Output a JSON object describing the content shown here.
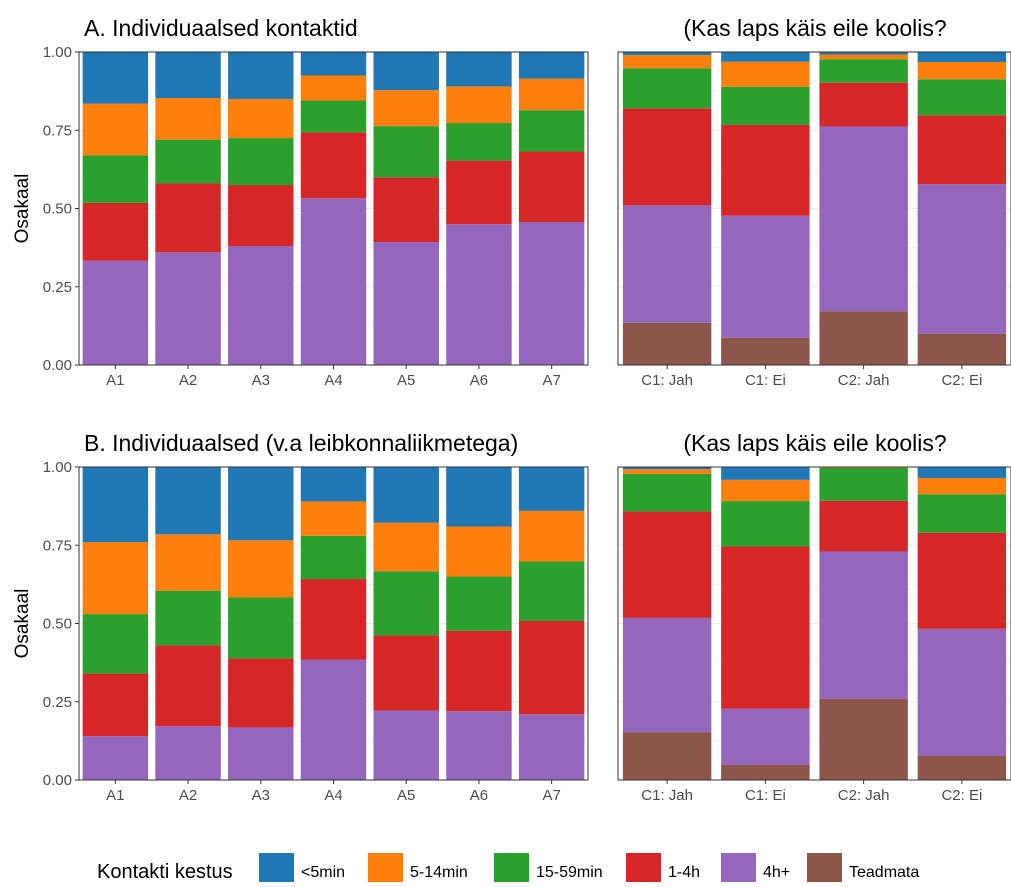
{
  "colors": {
    "<5min": "#1f77b4",
    "5-14min": "#ff7f0e",
    "15-59min": "#2ca02c",
    "1-4h": "#d62728",
    "4h+": "#9467bd",
    "Teadmata": "#8c564b"
  },
  "legend": {
    "title": "Kontakti kestus",
    "items": [
      "<5min",
      "5-14min",
      "15-59min",
      "1-4h",
      "4h+",
      "Teadmata"
    ],
    "placement": "bottom"
  },
  "chart_data": [
    {
      "type": "bar",
      "stacked": true,
      "title": "A. Individuaalsed kontaktid",
      "ylabel": "Osakaal",
      "ylim": [
        0,
        1
      ],
      "yticks": [
        "0.00",
        "0.25",
        "0.50",
        "0.75",
        "1.00"
      ],
      "grid": true,
      "categories": [
        "A1",
        "A2",
        "A3",
        "A4",
        "A5",
        "A6",
        "A7"
      ],
      "series": [
        {
          "name": "4h+",
          "values": [
            0.333,
            0.36,
            0.38,
            0.533,
            0.393,
            0.45,
            0.457
          ]
        },
        {
          "name": "1-4h",
          "values": [
            0.185,
            0.22,
            0.195,
            0.21,
            0.207,
            0.203,
            0.225
          ]
        },
        {
          "name": "15-59min",
          "values": [
            0.152,
            0.14,
            0.15,
            0.102,
            0.163,
            0.12,
            0.132
          ]
        },
        {
          "name": "5-14min",
          "values": [
            0.165,
            0.133,
            0.125,
            0.08,
            0.115,
            0.117,
            0.101
          ]
        },
        {
          "name": "<5min",
          "values": [
            0.165,
            0.147,
            0.15,
            0.075,
            0.122,
            0.11,
            0.085
          ]
        }
      ]
    },
    {
      "type": "bar",
      "stacked": true,
      "title": "(Kas laps käis eile koolis?",
      "ylim": [
        0,
        1
      ],
      "grid": true,
      "categories": [
        "C1: Jah",
        "C1: Ei",
        "C2: Jah",
        "C2: Ei"
      ],
      "series": [
        {
          "name": "Teadmata",
          "values": [
            0.135,
            0.087,
            0.172,
            0.1
          ]
        },
        {
          "name": "4h+",
          "values": [
            0.375,
            0.39,
            0.59,
            0.478
          ]
        },
        {
          "name": "1-4h",
          "values": [
            0.31,
            0.29,
            0.14,
            0.22
          ]
        },
        {
          "name": "15-59min",
          "values": [
            0.128,
            0.122,
            0.075,
            0.115
          ]
        },
        {
          "name": "5-14min",
          "values": [
            0.042,
            0.08,
            0.015,
            0.055
          ]
        },
        {
          "name": "<5min",
          "values": [
            0.01,
            0.031,
            0.008,
            0.032
          ]
        }
      ]
    },
    {
      "type": "bar",
      "stacked": true,
      "title": "B. Individuaalsed (v.a leibkonnaliikmetega)",
      "ylabel": "Osakaal",
      "ylim": [
        0,
        1
      ],
      "yticks": [
        "0.00",
        "0.25",
        "0.50",
        "0.75",
        "1.00"
      ],
      "grid": true,
      "categories": [
        "A1",
        "A2",
        "A3",
        "A4",
        "A5",
        "A6",
        "A7"
      ],
      "series": [
        {
          "name": "4h+",
          "values": [
            0.14,
            0.172,
            0.168,
            0.385,
            0.222,
            0.22,
            0.21
          ]
        },
        {
          "name": "1-4h",
          "values": [
            0.2,
            0.258,
            0.22,
            0.257,
            0.24,
            0.257,
            0.298
          ]
        },
        {
          "name": "15-59min",
          "values": [
            0.19,
            0.175,
            0.195,
            0.138,
            0.205,
            0.173,
            0.19
          ]
        },
        {
          "name": "5-14min",
          "values": [
            0.23,
            0.18,
            0.183,
            0.11,
            0.155,
            0.16,
            0.162
          ]
        },
        {
          "name": "<5min",
          "values": [
            0.24,
            0.215,
            0.234,
            0.11,
            0.178,
            0.19,
            0.14
          ]
        }
      ]
    },
    {
      "type": "bar",
      "stacked": true,
      "title": "(Kas laps käis eile koolis?",
      "ylim": [
        0,
        1
      ],
      "grid": true,
      "categories": [
        "C1: Jah",
        "C1: Ei",
        "C2: Jah",
        "C2: Ei"
      ],
      "series": [
        {
          "name": "Teadmata",
          "values": [
            0.153,
            0.048,
            0.26,
            0.078
          ]
        },
        {
          "name": "4h+",
          "values": [
            0.365,
            0.18,
            0.47,
            0.405
          ]
        },
        {
          "name": "1-4h",
          "values": [
            0.34,
            0.518,
            0.162,
            0.307
          ]
        },
        {
          "name": "15-59min",
          "values": [
            0.12,
            0.145,
            0.105,
            0.123
          ]
        },
        {
          "name": "5-14min",
          "values": [
            0.015,
            0.068,
            0.003,
            0.052
          ]
        },
        {
          "name": "<5min",
          "values": [
            0.007,
            0.041,
            0.0,
            0.035
          ]
        }
      ]
    }
  ]
}
